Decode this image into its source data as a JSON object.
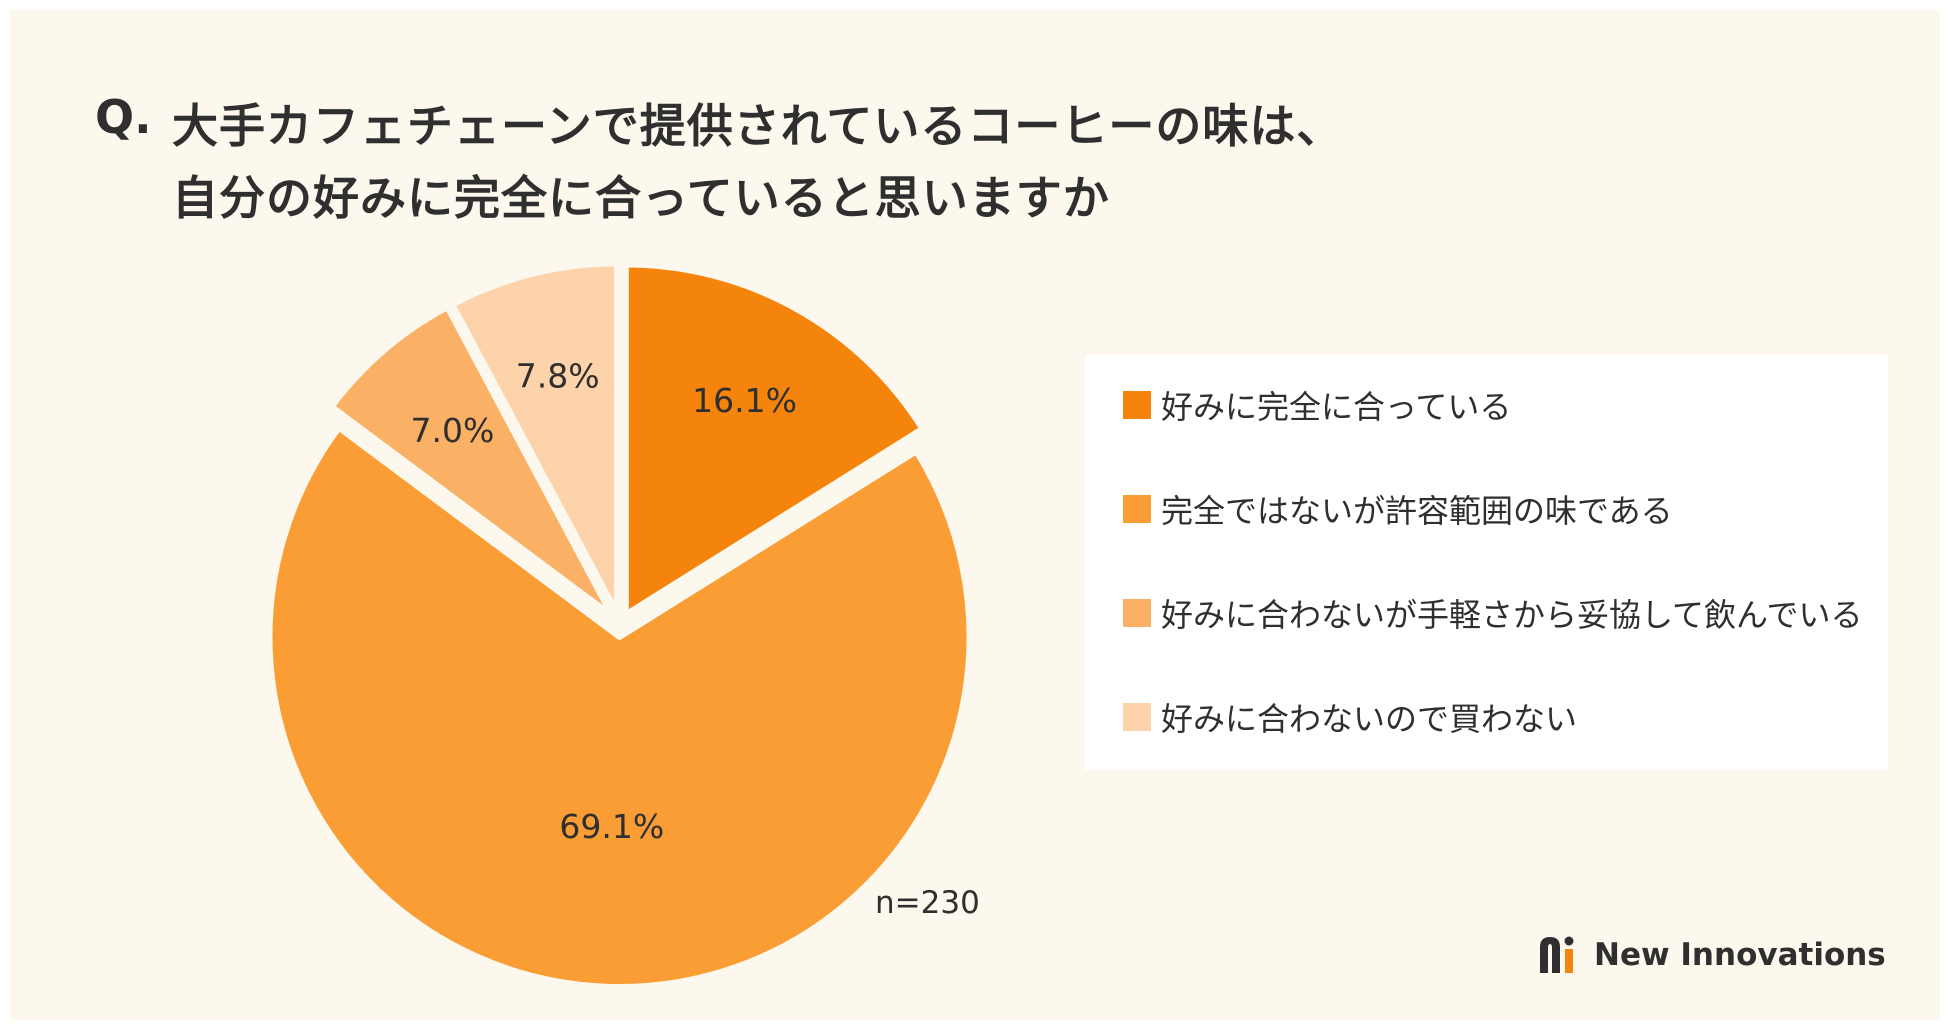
{
  "title": {
    "q": "Q.",
    "line1": "大手カフェチェーンで提供されているコーヒーの味は、",
    "line2": "自分の好みに完全に合っていると思いますか"
  },
  "chart_data": {
    "type": "pie",
    "title": "大手カフェチェーンで提供されているコーヒーの味は、自分の好みに完全に合っていると思いますか",
    "categories": [
      "好みに完全に合っている",
      "完全ではないが許容範囲の味である",
      "好みに合わないが手軽さから妥協して飲んでいる",
      "好みに合わないので買わない"
    ],
    "values": [
      16.1,
      69.1,
      7.0,
      7.8
    ],
    "value_labels": [
      "16.1%",
      "69.1%",
      "7.0%",
      "7.8%"
    ],
    "colors": [
      "#f5840c",
      "#f99d34",
      "#fab065",
      "#fcd3ab"
    ],
    "legend_placement": "right",
    "sample_size": "n=230"
  },
  "legend": [
    {
      "label": "好みに完全に合っている",
      "color": "#f5840c"
    },
    {
      "label": "完全ではないが許容範囲の味である",
      "color": "#f99d34"
    },
    {
      "label": "好みに合わないが手軽さから妥協して飲んでいる",
      "color": "#fab065"
    },
    {
      "label": "好みに合わないので買わない",
      "color": "#fcd3ab"
    }
  ],
  "brand": {
    "name": "New Innovations",
    "logo_icon": "ni-logo-icon"
  }
}
